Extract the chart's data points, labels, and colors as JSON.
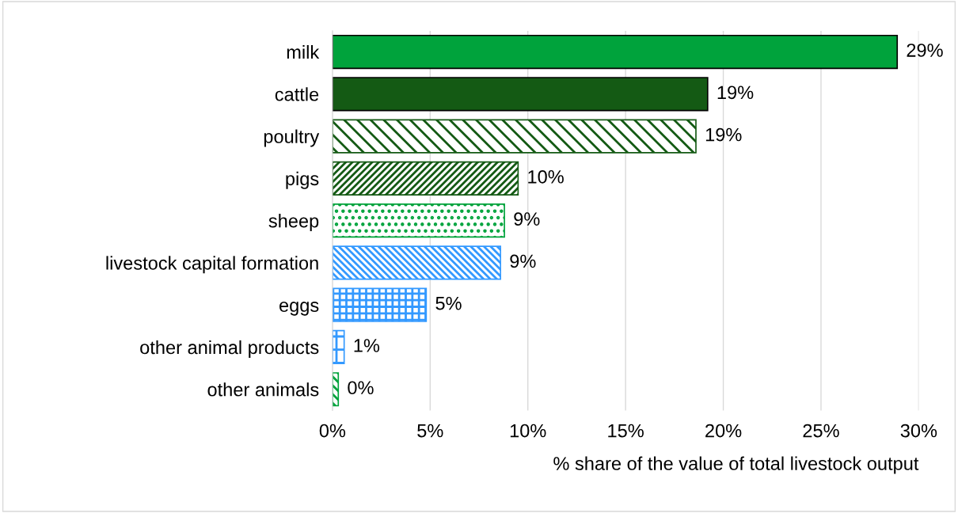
{
  "chart_data": {
    "type": "bar",
    "orientation": "horizontal",
    "xlabel": "% share of the value of total livestock output",
    "categories": [
      "milk",
      "cattle",
      "poultry",
      "pigs",
      "sheep",
      "livestock capital formation",
      "eggs",
      "other animal products",
      "other animals"
    ],
    "values": [
      28.9,
      19.2,
      18.6,
      9.5,
      8.8,
      8.6,
      4.8,
      0.6,
      0.3
    ],
    "value_labels": [
      "29%",
      "19%",
      "19%",
      "10%",
      "9%",
      "9%",
      "5%",
      "1%",
      "0%"
    ],
    "colors": [
      "#00a33c",
      "#145a14",
      "#145a14",
      "#145a14",
      "#00a33c",
      "#3399ff",
      "#3399ff",
      "#3399ff",
      "#00a33c"
    ],
    "xlim": [
      0,
      30
    ],
    "xticks": [
      {
        "value": 0,
        "label": "0%"
      },
      {
        "value": 5,
        "label": "5%"
      },
      {
        "value": 10,
        "label": "10%"
      },
      {
        "value": 15,
        "label": "15%"
      },
      {
        "value": 20,
        "label": "20%"
      },
      {
        "value": 25,
        "label": "25%"
      },
      {
        "value": 30,
        "label": "30%"
      }
    ],
    "grid": "x"
  }
}
